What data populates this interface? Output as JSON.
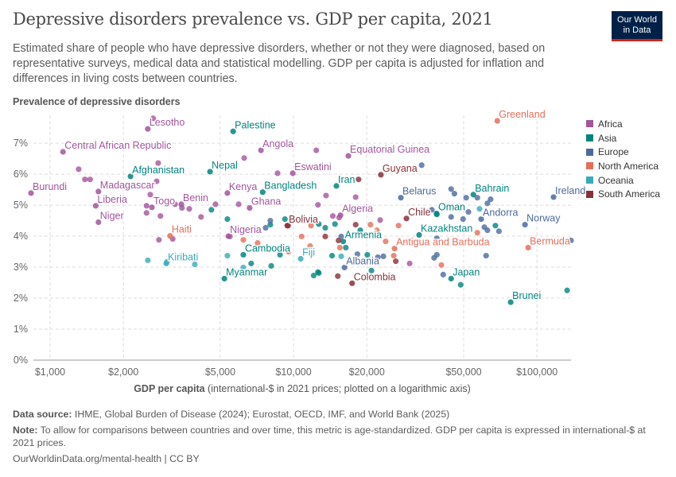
{
  "header": {
    "title": "Depressive disorders prevalence vs. GDP per capita, 2021",
    "subtitle": "Estimated share of people who have depressive disorders, whether or not they were diagnosed, based on representative surveys, medical data and statistical modelling. GDP per capita is adjusted for inflation and differences in living costs between countries.",
    "logo": "Our World in Data"
  },
  "footer": {
    "source_label": "Data source:",
    "source": " IHME, Global Burden of Disease (2024); Eurostat, OECD, IMF, and World Bank (2025)",
    "note_label": "Note:",
    "note": " To allow for comparisons between countries and over time, this metric is age-standardized. GDP per capita is expressed in international-$ at 2021 prices.",
    "url": "OurWorldinData.org/mental-health | CC BY"
  },
  "chart_data": {
    "type": "scatter",
    "ylabel": "Prevalence of depressive disorders",
    "xlabel_bold": "GDP per capita",
    "xlabel": " (international-$ in 2021 prices; plotted on a logarithmic axis)",
    "x_scale": "log",
    "xlim": [
      854,
      138000
    ],
    "ylim": [
      0,
      7.9
    ],
    "grid": true,
    "legend": "right",
    "x_ticks": [
      {
        "v": 1000,
        "l": "$1,000"
      },
      {
        "v": 2000,
        "l": "$2,000"
      },
      {
        "v": 5000,
        "l": "$5,000"
      },
      {
        "v": 10000,
        "l": "$10,000"
      },
      {
        "v": 20000,
        "l": "$20,000"
      },
      {
        "v": 50000,
        "l": "$50,000"
      },
      {
        "v": 100000,
        "l": "$100,000"
      }
    ],
    "y_ticks": [
      {
        "v": 0,
        "l": "0%"
      },
      {
        "v": 1,
        "l": "1%"
      },
      {
        "v": 2,
        "l": "2%"
      },
      {
        "v": 3,
        "l": "3%"
      },
      {
        "v": 4,
        "l": "4%"
      },
      {
        "v": 5,
        "l": "5%"
      },
      {
        "v": 6,
        "l": "6%"
      },
      {
        "v": 7,
        "l": "7%"
      }
    ],
    "series": [
      {
        "name": "Africa",
        "color": "#a2559c",
        "labeled": [
          {
            "name": "Lesotho",
            "x": 2520,
            "y": 7.46
          },
          {
            "name": "Central African Republic",
            "x": 1130,
            "y": 6.72
          },
          {
            "name": "Angola",
            "x": 7350,
            "y": 6.77
          },
          {
            "name": "Eswatini",
            "x": 9930,
            "y": 6.03
          },
          {
            "name": "Equatorial Guinea",
            "x": 16800,
            "y": 6.59
          },
          {
            "name": "Burundi",
            "x": 835,
            "y": 5.39
          },
          {
            "name": "Madagascar",
            "x": 1580,
            "y": 5.44
          },
          {
            "name": "Kenya",
            "x": 5350,
            "y": 5.39
          },
          {
            "name": "Liberia",
            "x": 1540,
            "y": 4.98
          },
          {
            "name": "Togo",
            "x": 2620,
            "y": 4.93
          },
          {
            "name": "Benin",
            "x": 3460,
            "y": 5.03
          },
          {
            "name": "Ghana",
            "x": 6600,
            "y": 4.91
          },
          {
            "name": "Algeria",
            "x": 15600,
            "y": 4.68
          },
          {
            "name": "Niger",
            "x": 1580,
            "y": 4.45
          },
          {
            "name": "Nigeria",
            "x": 5400,
            "y": 4.0
          }
        ],
        "points": [
          [
            2650,
            7.8
          ],
          [
            1310,
            6.16
          ],
          [
            1390,
            5.83
          ],
          [
            1460,
            5.83
          ],
          [
            2780,
            6.36
          ],
          [
            2740,
            5.77
          ],
          [
            2580,
            5.34
          ],
          [
            2490,
            4.98
          ],
          [
            2490,
            4.75
          ],
          [
            2840,
            4.65
          ],
          [
            3260,
            5.03
          ],
          [
            3480,
            4.91
          ],
          [
            3730,
            4.88
          ],
          [
            4170,
            4.62
          ],
          [
            4780,
            5.03
          ],
          [
            2800,
            3.88
          ],
          [
            3190,
            3.91
          ],
          [
            5480,
            3.99
          ],
          [
            5950,
            5.03
          ],
          [
            6270,
            6.52
          ],
          [
            8600,
            6.03
          ],
          [
            12400,
            6.77
          ],
          [
            13600,
            5.31
          ],
          [
            12600,
            5.01
          ],
          [
            14500,
            4.65
          ],
          [
            15400,
            4.6
          ],
          [
            18000,
            5.26
          ],
          [
            22700,
            4.52
          ],
          [
            30000,
            3.12
          ]
        ]
      },
      {
        "name": "Asia",
        "color": "#00847e",
        "labeled": [
          {
            "name": "Palestine",
            "x": 5650,
            "y": 7.38
          },
          {
            "name": "Afghanistan",
            "x": 2140,
            "y": 5.93
          },
          {
            "name": "Nepal",
            "x": 4540,
            "y": 6.08
          },
          {
            "name": "Iran",
            "x": 15000,
            "y": 5.62
          },
          {
            "name": "Bangladesh",
            "x": 7470,
            "y": 5.42
          },
          {
            "name": "Bahrain",
            "x": 54800,
            "y": 5.34
          },
          {
            "name": "Oman",
            "x": 38700,
            "y": 4.73
          },
          {
            "name": "Kazakhstan",
            "x": 32800,
            "y": 4.04
          },
          {
            "name": "Armenia",
            "x": 16000,
            "y": 3.83
          },
          {
            "name": "Cambodia",
            "x": 6220,
            "y": 3.4
          },
          {
            "name": "Myanmar",
            "x": 5200,
            "y": 2.63
          },
          {
            "name": "Japan",
            "x": 44400,
            "y": 2.63
          },
          {
            "name": "Brunei",
            "x": 78000,
            "y": 1.87
          }
        ],
        "points": [
          [
            4600,
            4.85
          ],
          [
            5350,
            4.55
          ],
          [
            8030,
            4.37
          ],
          [
            9220,
            4.55
          ],
          [
            12700,
            4.39
          ],
          [
            13500,
            4.27
          ],
          [
            14800,
            4.39
          ],
          [
            8800,
            3.4
          ],
          [
            8100,
            3.04
          ],
          [
            6700,
            3.12
          ],
          [
            12100,
            2.73
          ],
          [
            12700,
            2.81
          ],
          [
            14400,
            3.37
          ],
          [
            38800,
            4.7
          ],
          [
            67500,
            4.34
          ],
          [
            48600,
            2.43
          ],
          [
            133000,
            2.25
          ],
          [
            18800,
            4.19
          ],
          [
            16400,
            3.63
          ],
          [
            20100,
            3.4
          ],
          [
            20900,
            2.89
          ],
          [
            12600,
            2.84
          ]
        ]
      },
      {
        "name": "Europe",
        "color": "#4c6a9c",
        "labeled": [
          {
            "name": "Belarus",
            "x": 27600,
            "y": 5.24
          },
          {
            "name": "Ireland",
            "x": 117000,
            "y": 5.26
          },
          {
            "name": "Andorra",
            "x": 59000,
            "y": 4.55
          },
          {
            "name": "Norway",
            "x": 89300,
            "y": 4.37
          },
          {
            "name": "Albania",
            "x": 16200,
            "y": 2.99
          }
        ],
        "points": [
          [
            8030,
            4.5
          ],
          [
            7680,
            4.27
          ],
          [
            33600,
            6.29
          ],
          [
            44400,
            5.52
          ],
          [
            45800,
            5.37
          ],
          [
            51200,
            5.24
          ],
          [
            56900,
            5.24
          ],
          [
            64500,
            5.19
          ],
          [
            62600,
            5.06
          ],
          [
            52300,
            4.78
          ],
          [
            44400,
            4.62
          ],
          [
            49700,
            4.55
          ],
          [
            60800,
            4.29
          ],
          [
            62600,
            4.19
          ],
          [
            69800,
            4.16
          ],
          [
            38800,
            3.93
          ],
          [
            23400,
            3.35
          ],
          [
            22200,
            3.32
          ],
          [
            18300,
            3.42
          ],
          [
            37800,
            3.3
          ],
          [
            38800,
            3.4
          ],
          [
            41200,
            2.76
          ],
          [
            61800,
            3.37
          ],
          [
            138000,
            3.86
          ],
          [
            15700,
            3.99
          ],
          [
            37000,
            4.85
          ]
        ]
      },
      {
        "name": "North America",
        "color": "#e56e5a",
        "labeled": [
          {
            "name": "Greenland",
            "x": 68700,
            "y": 7.72
          },
          {
            "name": "Haiti",
            "x": 3110,
            "y": 4.01
          },
          {
            "name": "Bermuda",
            "x": 92000,
            "y": 3.63
          },
          {
            "name": "Antigua and Barbuda",
            "x": 26000,
            "y": 3.6
          }
        ],
        "points": [
          [
            6220,
            3.88
          ],
          [
            7120,
            3.78
          ],
          [
            10800,
            3.99
          ],
          [
            11700,
            3.68
          ],
          [
            11800,
            4.34
          ],
          [
            9530,
            3.5
          ],
          [
            27000,
            4.34
          ],
          [
            22000,
            4.19
          ],
          [
            20700,
            4.37
          ],
          [
            23900,
            3.83
          ],
          [
            25800,
            3.37
          ],
          [
            40500,
            3.07
          ],
          [
            56900,
            4.11
          ],
          [
            15500,
            3.63
          ]
        ]
      },
      {
        "name": "Oceania",
        "color": "#38aaba",
        "labeled": [
          {
            "name": "Fiji",
            "x": 10700,
            "y": 3.27
          },
          {
            "name": "Kiribati",
            "x": 3000,
            "y": 3.12
          }
        ],
        "points": [
          [
            2520,
            3.22
          ],
          [
            3020,
            3.17
          ],
          [
            3930,
            3.09
          ],
          [
            5350,
            3.37
          ],
          [
            6220,
            2.99
          ],
          [
            58100,
            4.88
          ],
          [
            47800,
            3.81
          ],
          [
            15700,
            3.35
          ]
        ]
      },
      {
        "name": "South America",
        "color": "#883039",
        "labeled": [
          {
            "name": "Guyana",
            "x": 22850,
            "y": 5.98
          },
          {
            "name": "Chile",
            "x": 29100,
            "y": 4.57
          },
          {
            "name": "Bolivia",
            "x": 9420,
            "y": 4.34
          },
          {
            "name": "Colombia",
            "x": 17400,
            "y": 2.48
          }
        ],
        "points": [
          [
            9500,
            4.34
          ],
          [
            13500,
            3.99
          ],
          [
            15200,
            2.71
          ],
          [
            18500,
            5.83
          ],
          [
            18000,
            4.37
          ],
          [
            15300,
            3.86
          ],
          [
            29500,
            3.83
          ],
          [
            26300,
            3.19
          ]
        ]
      }
    ]
  }
}
